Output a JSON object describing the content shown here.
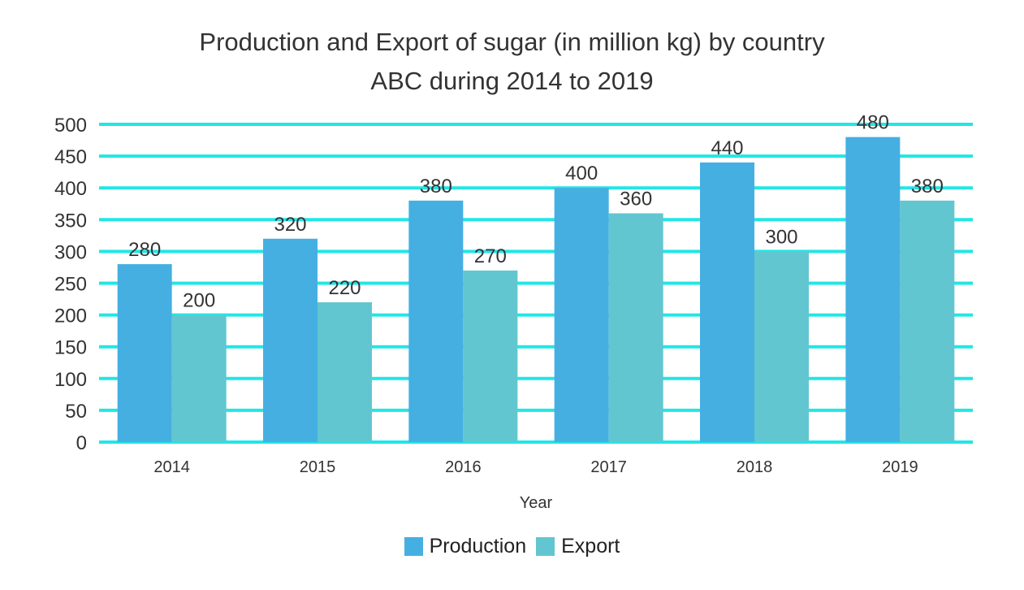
{
  "chart_data": {
    "type": "bar",
    "title_lines": [
      "Production and Export of sugar (in million kg) by country",
      "ABC during 2014 to 2019"
    ],
    "xlabel": "Year",
    "ylabel": "",
    "categories": [
      "2014",
      "2015",
      "2016",
      "2017",
      "2018",
      "2019"
    ],
    "series": [
      {
        "name": "Production",
        "values": [
          280,
          320,
          380,
          400,
          440,
          480
        ],
        "color": "#45AFE2"
      },
      {
        "name": "Export",
        "values": [
          200,
          220,
          270,
          360,
          300,
          380
        ],
        "color": "#62C6D0"
      }
    ],
    "ylim": [
      0,
      500
    ],
    "yticks": [
      0,
      50,
      100,
      150,
      200,
      250,
      300,
      350,
      400,
      450,
      500
    ],
    "grid": true,
    "grid_color": "#22E6E6",
    "legend_position": "bottom",
    "data_labels": true
  }
}
